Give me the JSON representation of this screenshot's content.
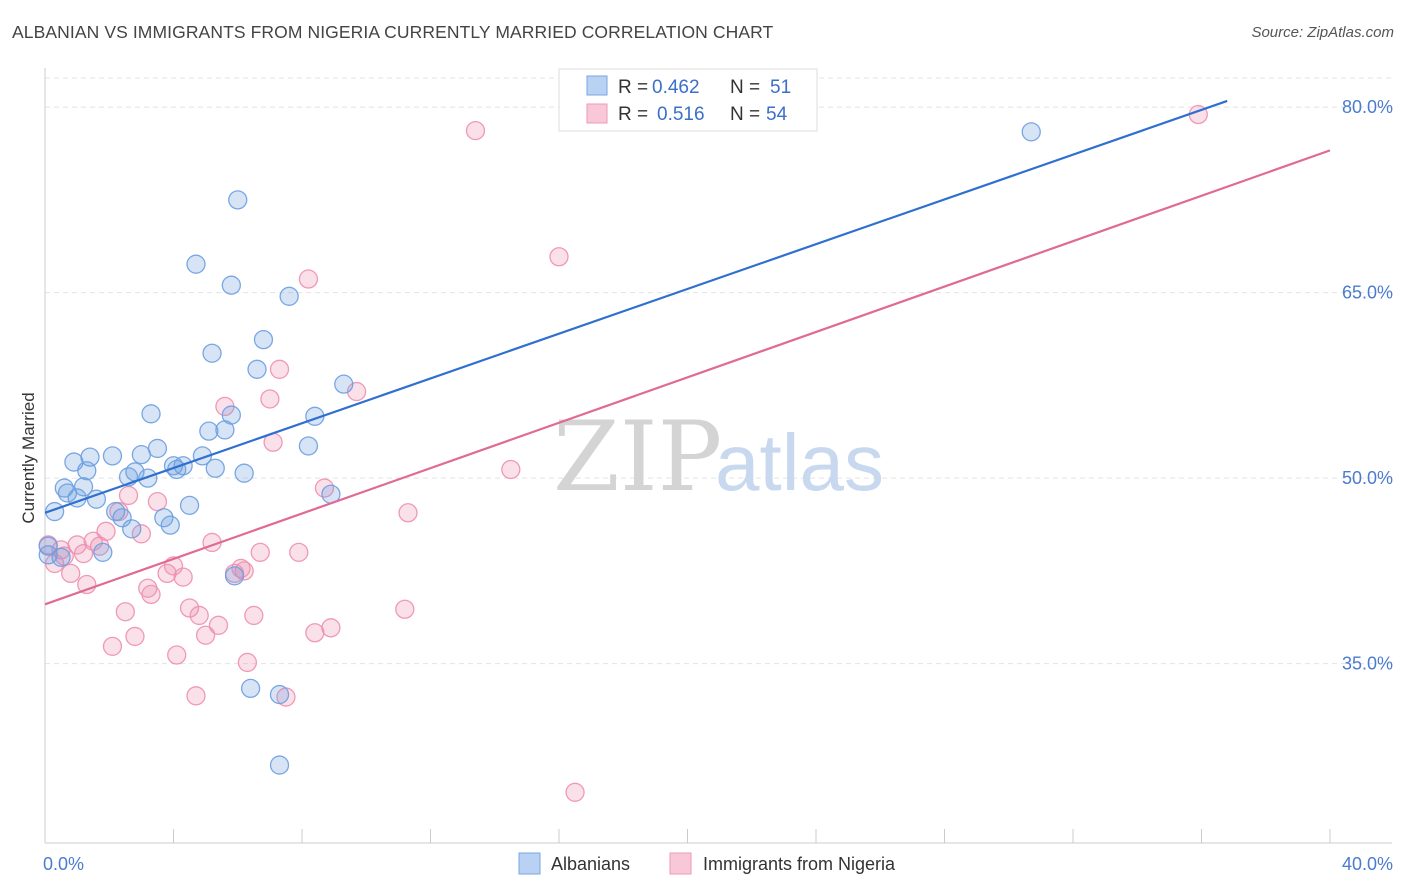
{
  "title": "ALBANIAN VS IMMIGRANTS FROM NIGERIA CURRENTLY MARRIED CORRELATION CHART",
  "source": "Source: ZipAtlas.com",
  "watermark": {
    "zip": "ZIP",
    "atlas": "atlas"
  },
  "colors": {
    "blue": "#6b9ee0",
    "blue_line": "#2f6fcf",
    "pink": "#ee8fb0",
    "pink_line": "#e06a95",
    "grid": "#e3e3e3",
    "axis_label": "#4a7bd0"
  },
  "legend": {
    "rows": [
      {
        "r_label": "R = ",
        "r_value": "0.462",
        "n_label": "N = ",
        "n_value": "51"
      },
      {
        "r_label": "R = ",
        "r_value": "0.516",
        "n_label": "N = ",
        "n_value": "54"
      }
    ]
  },
  "chart_data": {
    "type": "scatter",
    "title": "ALBANIAN VS IMMIGRANTS FROM NIGERIA CURRENTLY MARRIED CORRELATION CHART",
    "xlabel": "",
    "ylabel": "Currently Married",
    "xlim": [
      0,
      40
    ],
    "ylim": [
      20.5,
      83
    ],
    "x_tick_labels": [
      "0.0%",
      "40.0%"
    ],
    "y_ticks": [
      35,
      50,
      65,
      80
    ],
    "y_tick_labels": [
      "35.0%",
      "50.0%",
      "65.0%",
      "80.0%"
    ],
    "legend_position": "top-center",
    "series": [
      {
        "name": "Albanians",
        "trend": {
          "x0": 0,
          "y0": 47.2,
          "x1": 36.8,
          "y1": 80.5
        },
        "points": [
          [
            0.1,
            43.8
          ],
          [
            0.3,
            47.3
          ],
          [
            0.5,
            43.6
          ],
          [
            0.6,
            49.2
          ],
          [
            0.7,
            48.8
          ],
          [
            0.9,
            51.3
          ],
          [
            1.0,
            48.4
          ],
          [
            1.2,
            49.3
          ],
          [
            1.3,
            50.6
          ],
          [
            1.4,
            51.7
          ],
          [
            1.6,
            48.3
          ],
          [
            1.8,
            44.0
          ],
          [
            2.1,
            51.8
          ],
          [
            2.2,
            47.3
          ],
          [
            2.4,
            46.8
          ],
          [
            2.6,
            50.1
          ],
          [
            2.7,
            45.9
          ],
          [
            2.8,
            50.5
          ],
          [
            3.0,
            51.9
          ],
          [
            3.2,
            50.0
          ],
          [
            3.3,
            55.2
          ],
          [
            3.5,
            52.4
          ],
          [
            3.7,
            46.8
          ],
          [
            3.9,
            46.2
          ],
          [
            4.0,
            51.0
          ],
          [
            4.1,
            50.7
          ],
          [
            4.3,
            51.0
          ],
          [
            4.5,
            47.8
          ],
          [
            4.7,
            67.3
          ],
          [
            4.9,
            51.8
          ],
          [
            5.1,
            53.8
          ],
          [
            5.2,
            60.1
          ],
          [
            5.3,
            50.8
          ],
          [
            5.6,
            53.9
          ],
          [
            5.8,
            55.1
          ],
          [
            5.8,
            65.6
          ],
          [
            5.9,
            42.1
          ],
          [
            6.0,
            72.5
          ],
          [
            6.4,
            33.0
          ],
          [
            6.6,
            58.8
          ],
          [
            6.8,
            61.2
          ],
          [
            7.3,
            32.5
          ],
          [
            7.3,
            26.8
          ],
          [
            7.6,
            64.7
          ],
          [
            8.2,
            52.6
          ],
          [
            8.4,
            55.0
          ],
          [
            8.9,
            48.7
          ],
          [
            9.3,
            57.6
          ],
          [
            30.7,
            78.0
          ],
          [
            0.1,
            44.5
          ],
          [
            6.2,
            50.4
          ]
        ]
      },
      {
        "name": "Immigrants from Nigeria",
        "trend": {
          "x0": 0,
          "y0": 39.8,
          "x1": 40,
          "y1": 76.5
        },
        "points": [
          [
            0.1,
            44.6
          ],
          [
            0.3,
            43.1
          ],
          [
            0.5,
            44.2
          ],
          [
            0.6,
            43.7
          ],
          [
            0.8,
            42.3
          ],
          [
            1.0,
            44.6
          ],
          [
            1.2,
            43.9
          ],
          [
            1.3,
            41.4
          ],
          [
            1.5,
            44.9
          ],
          [
            1.7,
            44.5
          ],
          [
            1.9,
            45.7
          ],
          [
            2.1,
            36.4
          ],
          [
            2.3,
            47.3
          ],
          [
            2.5,
            39.2
          ],
          [
            2.6,
            48.6
          ],
          [
            2.8,
            37.2
          ],
          [
            3.0,
            45.5
          ],
          [
            3.2,
            41.1
          ],
          [
            3.3,
            40.6
          ],
          [
            3.5,
            48.1
          ],
          [
            3.8,
            42.3
          ],
          [
            4.0,
            42.9
          ],
          [
            4.1,
            35.7
          ],
          [
            4.3,
            42.0
          ],
          [
            4.5,
            39.5
          ],
          [
            4.7,
            32.4
          ],
          [
            4.8,
            38.9
          ],
          [
            5.0,
            37.3
          ],
          [
            5.2,
            44.8
          ],
          [
            5.4,
            38.1
          ],
          [
            5.6,
            55.8
          ],
          [
            5.9,
            42.3
          ],
          [
            6.1,
            42.7
          ],
          [
            6.2,
            42.5
          ],
          [
            6.3,
            35.1
          ],
          [
            6.5,
            38.9
          ],
          [
            6.7,
            44.0
          ],
          [
            7.0,
            56.4
          ],
          [
            7.1,
            52.9
          ],
          [
            7.3,
            58.8
          ],
          [
            7.5,
            32.3
          ],
          [
            7.9,
            44.0
          ],
          [
            8.2,
            66.1
          ],
          [
            8.4,
            37.5
          ],
          [
            8.7,
            49.2
          ],
          [
            8.9,
            37.9
          ],
          [
            9.7,
            57.0
          ],
          [
            11.2,
            39.4
          ],
          [
            11.3,
            47.2
          ],
          [
            13.4,
            78.1
          ],
          [
            14.5,
            50.7
          ],
          [
            16.0,
            67.9
          ],
          [
            16.5,
            24.6
          ],
          [
            35.9,
            79.4
          ]
        ]
      }
    ]
  },
  "bottom_legend": [
    "Albanians",
    "Immigrants from Nigeria"
  ]
}
